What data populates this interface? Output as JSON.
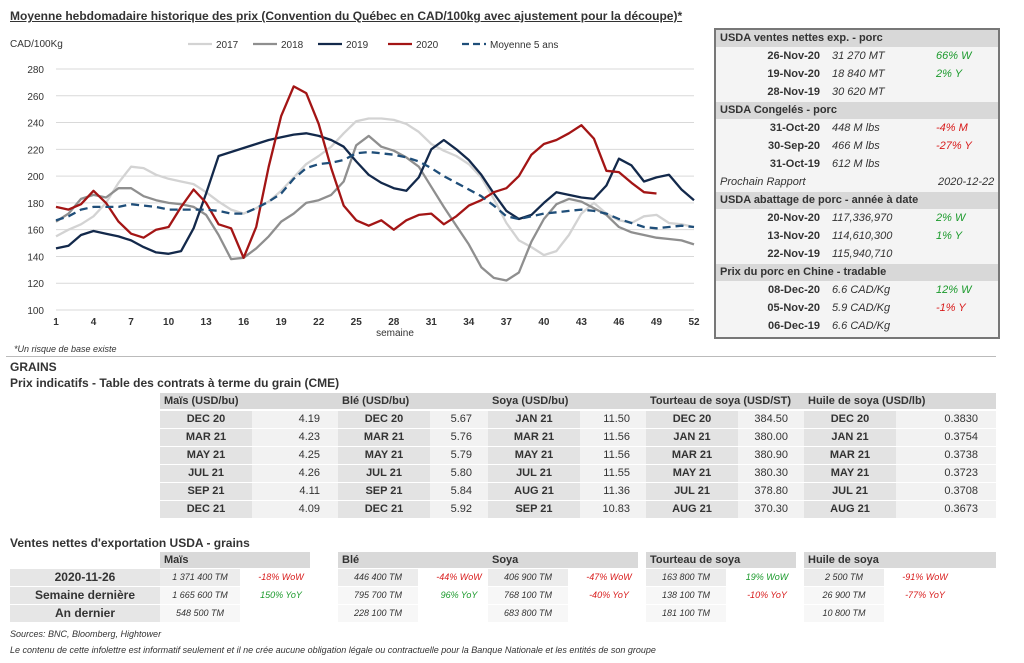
{
  "title": "Moyenne hebdomadaire historique des prix (Convention du Québec en CAD/100kg avec ajustement pour la découpe)*",
  "footnote": "*Un risque de base existe",
  "chart_data": {
    "type": "line",
    "ylabel": "CAD/100Kg",
    "xlabel": "semaine",
    "xticks": [
      1,
      4,
      7,
      10,
      13,
      16,
      19,
      22,
      25,
      28,
      31,
      34,
      37,
      40,
      43,
      46,
      49,
      52
    ],
    "yticks": [
      100,
      120,
      140,
      160,
      180,
      200,
      220,
      240,
      260,
      280
    ],
    "ylim": [
      100,
      280
    ],
    "xlim": [
      1,
      52
    ],
    "legend_position": "top",
    "series": [
      {
        "name": "2017",
        "color": "#d3d3d3",
        "dash": false,
        "x": [
          1,
          2,
          3,
          4,
          5,
          6,
          7,
          8,
          9,
          10,
          11,
          12,
          13,
          14,
          15,
          16,
          17,
          18,
          19,
          20,
          21,
          22,
          23,
          24,
          25,
          26,
          27,
          28,
          29,
          30,
          31,
          32,
          33,
          34,
          35,
          36,
          37,
          38,
          39,
          40,
          41,
          42,
          43,
          44,
          45,
          46,
          47,
          48,
          49,
          50,
          51,
          52
        ],
        "y": [
          155,
          160,
          164,
          170,
          180,
          195,
          207,
          206,
          201,
          198,
          196,
          194,
          188,
          181,
          175,
          172,
          176,
          181,
          189,
          199,
          209,
          215,
          222,
          232,
          241,
          243,
          243,
          242,
          239,
          233,
          224,
          219,
          215,
          209,
          199,
          183,
          165,
          152,
          147,
          141,
          144,
          156,
          172,
          180,
          172,
          167,
          165,
          170,
          171,
          165,
          164,
          162
        ]
      },
      {
        "name": "2018",
        "color": "#8f8f8f",
        "dash": false,
        "x": [
          1,
          2,
          3,
          4,
          5,
          6,
          7,
          8,
          9,
          10,
          11,
          12,
          13,
          14,
          15,
          16,
          17,
          18,
          19,
          20,
          21,
          22,
          23,
          24,
          25,
          26,
          27,
          28,
          29,
          30,
          31,
          32,
          33,
          34,
          35,
          36,
          37,
          38,
          39,
          40,
          41,
          42,
          43,
          44,
          45,
          46,
          47,
          48,
          49,
          50,
          51,
          52
        ],
        "y": [
          166,
          172,
          183,
          186,
          184,
          191,
          191,
          185,
          182,
          180,
          179,
          177,
          171,
          156,
          138,
          139,
          146,
          155,
          166,
          172,
          180,
          182,
          186,
          196,
          223,
          230,
          222,
          219,
          214,
          207,
          192,
          177,
          163,
          149,
          132,
          124,
          122,
          128,
          151,
          168,
          179,
          183,
          181,
          176,
          171,
          162,
          158,
          156,
          154,
          153,
          152,
          149
        ]
      },
      {
        "name": "2019",
        "color": "#13294b",
        "dash": false,
        "x": [
          1,
          2,
          3,
          4,
          5,
          6,
          7,
          8,
          9,
          10,
          11,
          12,
          13,
          14,
          15,
          16,
          17,
          18,
          19,
          20,
          21,
          22,
          23,
          24,
          25,
          26,
          27,
          28,
          29,
          30,
          31,
          32,
          33,
          34,
          35,
          36,
          37,
          38,
          39,
          40,
          41,
          42,
          43,
          44,
          45,
          46,
          47,
          48,
          49,
          50,
          51,
          52
        ],
        "y": [
          146,
          148,
          156,
          159,
          157,
          155,
          152,
          147,
          143,
          142,
          144,
          161,
          187,
          215,
          218,
          221,
          224,
          227,
          229,
          231,
          232,
          230,
          227,
          222,
          211,
          201,
          195,
          191,
          189,
          199,
          220,
          227,
          220,
          212,
          201,
          187,
          174,
          168,
          171,
          180,
          188,
          186,
          184,
          183,
          193,
          213,
          208,
          196,
          199,
          201,
          190,
          182
        ]
      },
      {
        "name": "2020",
        "color": "#a31515",
        "dash": false,
        "x": [
          1,
          2,
          3,
          4,
          5,
          6,
          7,
          8,
          9,
          10,
          11,
          12,
          13,
          14,
          15,
          16,
          17,
          18,
          19,
          20,
          21,
          22,
          23,
          24,
          25,
          26,
          27,
          28,
          29,
          30,
          31,
          32,
          33,
          34,
          35,
          36,
          37,
          38,
          39,
          40,
          41,
          42,
          43,
          44,
          45,
          46,
          47,
          48,
          49
        ],
        "y": [
          177,
          175,
          179,
          189,
          180,
          166,
          157,
          154,
          160,
          162,
          177,
          190,
          180,
          164,
          161,
          139,
          162,
          207,
          245,
          267,
          262,
          239,
          206,
          178,
          167,
          163,
          167,
          160,
          167,
          171,
          172,
          164,
          170,
          178,
          182,
          188,
          191,
          200,
          216,
          224,
          227,
          232,
          238,
          228,
          204,
          203,
          195,
          188,
          187
        ]
      },
      {
        "name": "Moyenne 5 ans",
        "color": "#1f4e79",
        "dash": true,
        "x": [
          1,
          2,
          3,
          4,
          5,
          6,
          7,
          8,
          9,
          10,
          11,
          12,
          13,
          14,
          15,
          16,
          17,
          18,
          19,
          20,
          21,
          22,
          23,
          24,
          25,
          26,
          27,
          28,
          29,
          30,
          31,
          32,
          33,
          34,
          35,
          36,
          37,
          38,
          39,
          40,
          41,
          42,
          43,
          44,
          45,
          46,
          47,
          48,
          49,
          50,
          51,
          52
        ],
        "y": [
          167,
          170,
          175,
          177,
          177,
          177,
          179,
          178,
          177,
          175,
          175,
          175,
          175,
          174,
          172,
          172,
          176,
          181,
          187,
          198,
          206,
          209,
          210,
          212,
          217,
          218,
          217,
          216,
          214,
          211,
          206,
          200,
          195,
          190,
          185,
          178,
          170,
          168,
          170,
          172,
          173,
          174,
          175,
          174,
          172,
          168,
          165,
          162,
          161,
          162,
          163,
          162
        ]
      }
    ]
  },
  "usda_pork": {
    "sections": [
      {
        "title": "USDA ventes nettes exp. - porc",
        "rows": [
          {
            "date": "26-Nov-20",
            "value": "31 270  MT",
            "change": "66% W",
            "dir": "up"
          },
          {
            "date": "19-Nov-20",
            "value": "18 840  MT",
            "change": "2% Y",
            "dir": "up"
          },
          {
            "date": "28-Nov-19",
            "value": "30 620  MT",
            "change": "",
            "dir": ""
          }
        ]
      },
      {
        "title": "USDA Congelés - porc",
        "rows": [
          {
            "date": "31-Oct-20",
            "value": "448 M lbs",
            "change": "-4% M",
            "dir": "down"
          },
          {
            "date": "30-Sep-20",
            "value": "466 M lbs",
            "change": "-27% Y",
            "dir": "down"
          },
          {
            "date": "31-Oct-19",
            "value": "612 M lbs",
            "change": "",
            "dir": ""
          }
        ]
      },
      {
        "title": "USDA abattage de porc - année à date",
        "rows": [
          {
            "date": "20-Nov-20",
            "value": "117,336,970",
            "change": "2% W",
            "dir": "up"
          },
          {
            "date": "13-Nov-20",
            "value": "114,610,300",
            "change": "1% Y",
            "dir": "up"
          },
          {
            "date": "22-Nov-19",
            "value": "115,940,710",
            "change": "",
            "dir": ""
          }
        ]
      },
      {
        "title": "Prix du porc en Chine - tradable",
        "rows": [
          {
            "date": "08-Dec-20",
            "value": "6.6 CAD/Kg",
            "change": "12% W",
            "dir": "up"
          },
          {
            "date": "05-Nov-20",
            "value": "5.9 CAD/Kg",
            "change": "-1% Y",
            "dir": "down"
          },
          {
            "date": "06-Dec-19",
            "value": "6.6 CAD/Kg",
            "change": "",
            "dir": ""
          }
        ]
      }
    ],
    "next_report_label": "Prochain Rapport",
    "next_report_date": "2020-12-22"
  },
  "grains": {
    "section_title": "GRAINS",
    "futures_title": "Prix indicatifs - Table des contrats à terme du grain (CME)",
    "futures": [
      {
        "header": "Maïs (USD/bu)",
        "rows": [
          [
            "DEC 20",
            "4.19"
          ],
          [
            "MAR 21",
            "4.23"
          ],
          [
            "MAY 21",
            "4.25"
          ],
          [
            "JUL 21",
            "4.26"
          ],
          [
            "SEP 21",
            "4.11"
          ],
          [
            "DEC 21",
            "4.09"
          ]
        ]
      },
      {
        "header": "Blé (USD/bu)",
        "rows": [
          [
            "DEC 20",
            "5.67"
          ],
          [
            "MAR 21",
            "5.76"
          ],
          [
            "MAY 21",
            "5.79"
          ],
          [
            "JUL 21",
            "5.80"
          ],
          [
            "SEP 21",
            "5.84"
          ],
          [
            "DEC 21",
            "5.92"
          ]
        ]
      },
      {
        "header": "Soya (USD/bu)",
        "rows": [
          [
            "JAN 21",
            "11.50"
          ],
          [
            "MAR 21",
            "11.56"
          ],
          [
            "MAY 21",
            "11.56"
          ],
          [
            "JUL 21",
            "11.55"
          ],
          [
            "AUG 21",
            "11.36"
          ],
          [
            "SEP 21",
            "10.83"
          ]
        ]
      },
      {
        "header": "Tourteau de soya (USD/ST)",
        "rows": [
          [
            "DEC 20",
            "384.50"
          ],
          [
            "JAN 21",
            "380.00"
          ],
          [
            "MAR 21",
            "380.90"
          ],
          [
            "MAY 21",
            "380.30"
          ],
          [
            "JUL 21",
            "378.80"
          ],
          [
            "AUG 21",
            "370.30"
          ]
        ]
      },
      {
        "header": "Huile de soya (USD/lb)",
        "rows": [
          [
            "DEC 20",
            "0.3830"
          ],
          [
            "JAN 21",
            "0.3754"
          ],
          [
            "MAR 21",
            "0.3738"
          ],
          [
            "MAY 21",
            "0.3723"
          ],
          [
            "JUL 21",
            "0.3708"
          ],
          [
            "AUG 21",
            "0.3673"
          ]
        ]
      }
    ],
    "exports_title": "Ventes nettes d'exportation USDA - grains",
    "export_rows": [
      "2020-11-26",
      "Semaine dernière",
      "An dernier"
    ],
    "exports": [
      {
        "header": "Maïs",
        "values": [
          "1 371 400 TM",
          "1 665 600 TM",
          "548 500 TM"
        ],
        "changes": [
          [
            "-18% WoW",
            "down"
          ],
          [
            "150% YoY",
            "up"
          ],
          [
            "",
            ""
          ]
        ]
      },
      {
        "header": "Blé",
        "values": [
          "446 400 TM",
          "795 700 TM",
          "228 100 TM"
        ],
        "changes": [
          [
            "-44% WoW",
            "down"
          ],
          [
            "96% YoY",
            "up"
          ],
          [
            "",
            ""
          ]
        ]
      },
      {
        "header": "Soya",
        "values": [
          "406 900 TM",
          "768 100 TM",
          "683 800 TM"
        ],
        "changes": [
          [
            "-47% WoW",
            "down"
          ],
          [
            "-40% YoY",
            "down"
          ],
          [
            "",
            ""
          ]
        ]
      },
      {
        "header": "Tourteau de soya",
        "values": [
          "163 800 TM",
          "138 100 TM",
          "181 100 TM"
        ],
        "changes": [
          [
            "19% WoW",
            "up"
          ],
          [
            "-10% YoY",
            "down"
          ],
          [
            "",
            ""
          ]
        ]
      },
      {
        "header": "Huile de soya",
        "values": [
          "2 500 TM",
          "26 900 TM",
          "10 800 TM"
        ],
        "changes": [
          [
            "-91% WoW",
            "down"
          ],
          [
            "-77% YoY",
            "down"
          ],
          [
            "",
            ""
          ]
        ]
      }
    ]
  },
  "sources": "Sources: BNC, Bloomberg, Hightower",
  "disclaimer": "Le contenu de cette infolettre est informatif seulement et il ne crée aucune obligation légale ou contractuelle pour la Banque Nationale et les entités de son groupe"
}
